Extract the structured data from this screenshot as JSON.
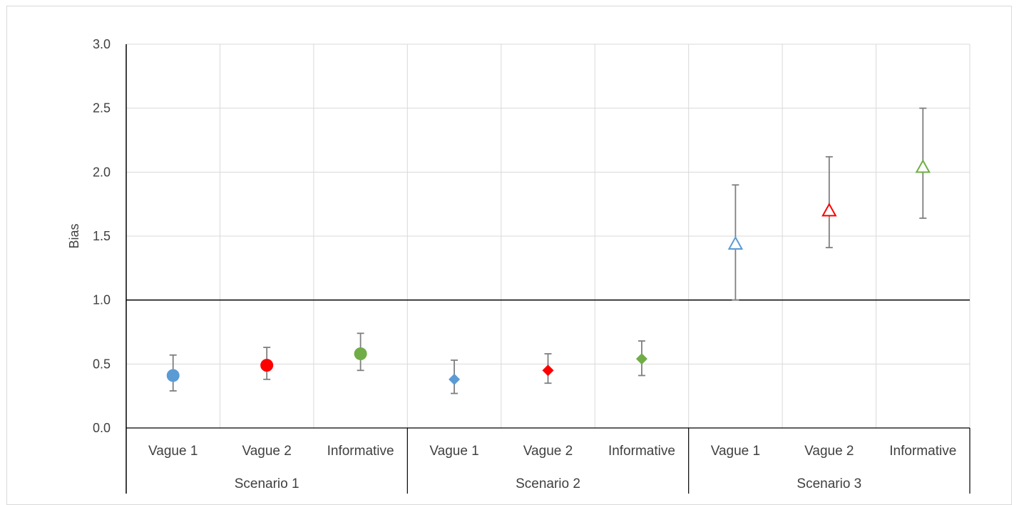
{
  "chart_data": {
    "type": "scatter",
    "ylabel": "Bias",
    "ylim": [
      0,
      3
    ],
    "yticks": [
      "0.0",
      "0.5",
      "1.0",
      "1.5",
      "2.0",
      "2.5",
      "3.0"
    ],
    "reference_line": 1.0,
    "grid": "on",
    "categories": [
      "Vague 1",
      "Vague 2",
      "Informative",
      "Vague 1",
      "Vague 2",
      "Informative",
      "Vague 1",
      "Vague 2",
      "Informative"
    ],
    "groups": [
      "Scenario 1",
      "Scenario 2",
      "Scenario 3"
    ],
    "colors": [
      "#5b9bd5",
      "#ff0000",
      "#70ad47",
      "#5b9bd5",
      "#ff0000",
      "#70ad47",
      "#5b9bd5",
      "#ff0000",
      "#70ad47"
    ],
    "markers": [
      "circle",
      "circle",
      "circle",
      "diamond",
      "diamond",
      "diamond",
      "triangle-open",
      "triangle-open",
      "triangle-open"
    ],
    "values": [
      0.41,
      0.49,
      0.58,
      0.38,
      0.45,
      0.54,
      1.44,
      1.7,
      2.04
    ],
    "lower": [
      0.29,
      0.38,
      0.45,
      0.27,
      0.35,
      0.41,
      1.0,
      1.41,
      1.64
    ],
    "upper": [
      0.57,
      0.63,
      0.74,
      0.53,
      0.58,
      0.68,
      1.9,
      2.12,
      2.5
    ]
  }
}
